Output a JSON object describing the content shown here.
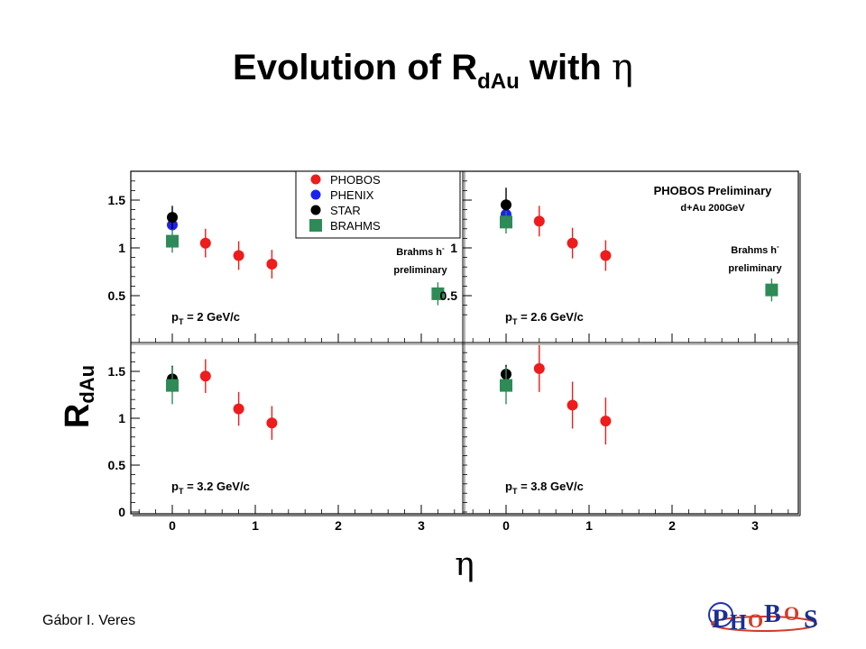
{
  "title": {
    "main": "Evolution of R",
    "sub": "dAu",
    "tail": " with ",
    "eta": "η"
  },
  "author": "Gábor I. Veres",
  "logo_text": "PHOBOS",
  "colors": {
    "phobos": "#ee1c1c",
    "phenix": "#1c22ee",
    "star": "#000000",
    "brahms": "#2e8b57"
  },
  "chart_data": {
    "type": "scatter",
    "ylabel": {
      "main": "R",
      "sub": "dAu"
    },
    "xlabel": "η",
    "xlim": [
      -0.45,
      3.6
    ],
    "x_ticks": [
      "0",
      "1",
      "2",
      "3"
    ],
    "legend": {
      "placement": "top-left panel, top-right",
      "entries": [
        {
          "name": "PHOBOS",
          "key": "phobos",
          "marker": "circle"
        },
        {
          "name": "PHENIX",
          "key": "phenix",
          "marker": "circle"
        },
        {
          "name": "STAR",
          "key": "star",
          "marker": "circle"
        },
        {
          "name": "BRAHMS",
          "key": "brahms",
          "marker": "square"
        }
      ]
    },
    "annotations": {
      "preliminary_title": "PHOBOS Preliminary",
      "system": "d+Au 200GeV",
      "brahms_note": [
        "Brahms h",
        "preliminary"
      ]
    },
    "panels": [
      {
        "pt_label": "2 GeV/c",
        "ylim": [
          0.25,
          1.8
        ],
        "y_ticks": [
          "0.5",
          "1",
          "1.5"
        ],
        "series": [
          {
            "key": "phobos",
            "x": [
              0.4,
              0.8,
              1.2
            ],
            "y": [
              1.05,
              0.92,
              0.83
            ],
            "err": [
              0.15,
              0.15,
              0.15
            ]
          },
          {
            "key": "phenix",
            "x": [
              0.0
            ],
            "y": [
              1.24
            ],
            "err": [
              0.05
            ]
          },
          {
            "key": "star",
            "x": [
              0.0
            ],
            "y": [
              1.32
            ],
            "err": [
              0.12
            ]
          },
          {
            "key": "brahms",
            "x": [
              0.0,
              3.2
            ],
            "y": [
              1.07,
              0.52
            ],
            "err": [
              0.12,
              0.12
            ]
          }
        ]
      },
      {
        "pt_label": "2.6 GeV/c",
        "ylim": [
          0.25,
          1.8
        ],
        "y_ticks": [
          "0.5",
          "1",
          "1.5"
        ],
        "series": [
          {
            "key": "phobos",
            "x": [
              0.4,
              0.8,
              1.2
            ],
            "y": [
              1.28,
              1.05,
              0.92
            ],
            "err": [
              0.16,
              0.16,
              0.16
            ]
          },
          {
            "key": "phenix",
            "x": [
              0.0
            ],
            "y": [
              1.35
            ],
            "err": [
              0.05
            ]
          },
          {
            "key": "star",
            "x": [
              0.0
            ],
            "y": [
              1.45
            ],
            "err": [
              0.18
            ]
          },
          {
            "key": "brahms",
            "x": [
              0.0,
              3.2
            ],
            "y": [
              1.27,
              0.56
            ],
            "err": [
              0.12,
              0.12
            ]
          }
        ]
      },
      {
        "pt_label": "3.2 GeV/c",
        "ylim": [
          0.0,
          1.8
        ],
        "y_ticks": [
          "0",
          "0.5",
          "1",
          "1.5"
        ],
        "series": [
          {
            "key": "phobos",
            "x": [
              0.4,
              0.8,
              1.2
            ],
            "y": [
              1.45,
              1.1,
              0.95
            ],
            "err": [
              0.18,
              0.18,
              0.18
            ]
          },
          {
            "key": "phenix",
            "x": [
              0.0
            ],
            "y": [
              1.37
            ],
            "err": [
              0.05
            ]
          },
          {
            "key": "star",
            "x": [
              0.0
            ],
            "y": [
              1.42
            ],
            "err": [
              0.14
            ]
          },
          {
            "key": "brahms",
            "x": [
              0.0
            ],
            "y": [
              1.35
            ],
            "err": [
              0.2
            ]
          }
        ]
      },
      {
        "pt_label": "3.8 GeV/c",
        "ylim": [
          0.0,
          1.8
        ],
        "y_ticks": [],
        "series": [
          {
            "key": "phobos",
            "x": [
              0.4,
              0.8,
              1.2
            ],
            "y": [
              1.53,
              1.14,
              0.97
            ],
            "err": [
              0.25,
              0.25,
              0.25
            ]
          },
          {
            "key": "phenix",
            "x": [
              0.0
            ],
            "y": [
              1.37
            ],
            "err": [
              0.05
            ]
          },
          {
            "key": "star",
            "x": [
              0.0
            ],
            "y": [
              1.47
            ],
            "err": [
              0.1
            ]
          },
          {
            "key": "brahms",
            "x": [
              0.0
            ],
            "y": [
              1.35
            ],
            "err": [
              0.2
            ]
          }
        ]
      }
    ]
  }
}
